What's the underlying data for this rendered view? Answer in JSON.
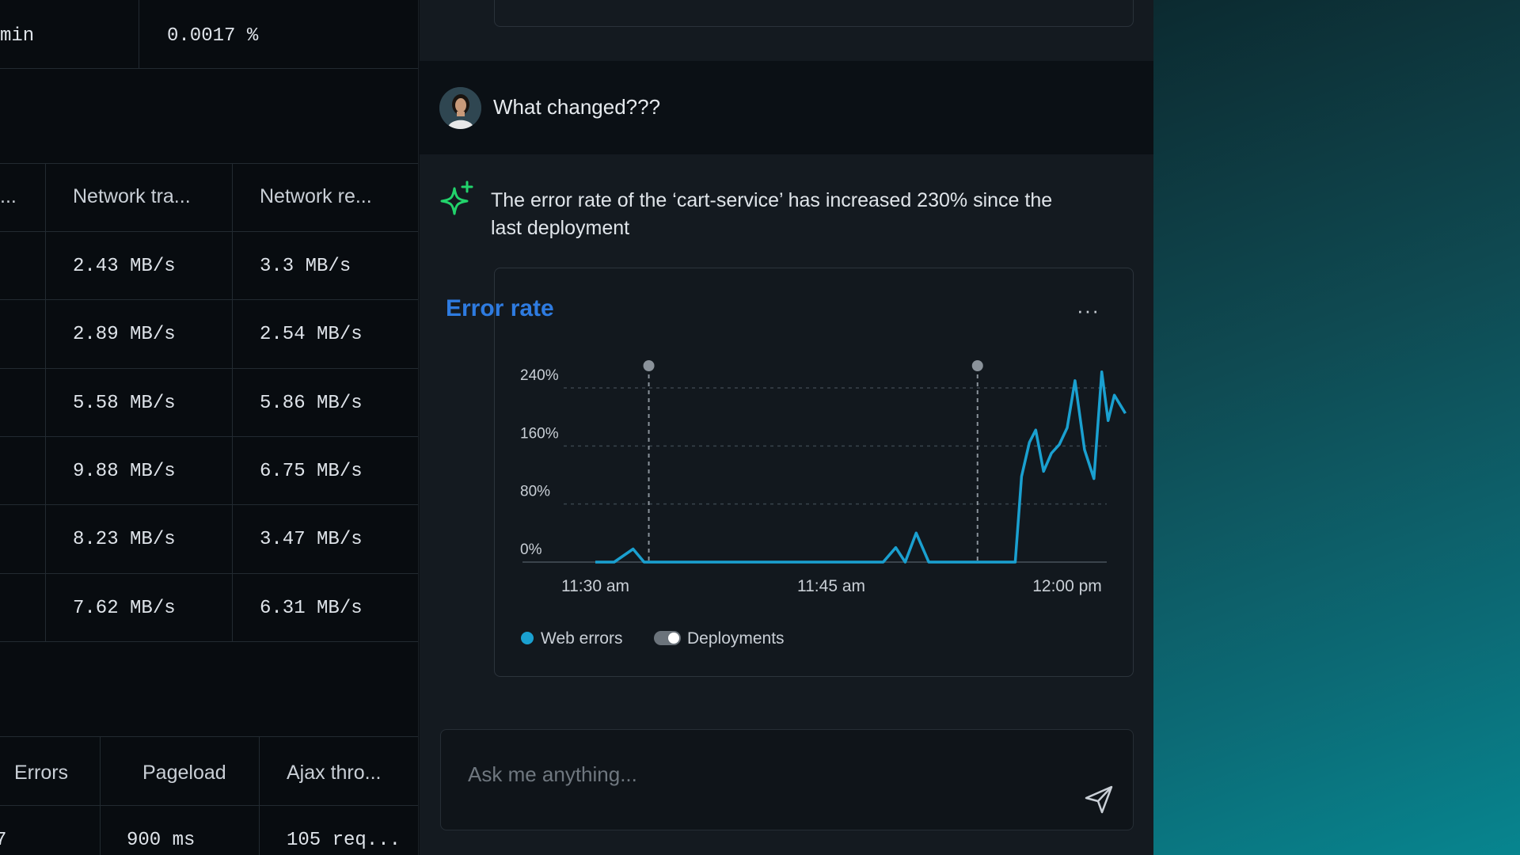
{
  "table_top": {
    "partial_label": "min",
    "value": "0.0017 %"
  },
  "network_table": {
    "headers": [
      "...",
      "Network tra...",
      "Network re..."
    ],
    "rows": [
      [
        "2.43 MB/s",
        "3.3 MB/s"
      ],
      [
        "2.89 MB/s",
        "2.54 MB/s"
      ],
      [
        "5.58 MB/s",
        "5.86 MB/s"
      ],
      [
        "9.88 MB/s",
        "6.75 MB/s"
      ],
      [
        "8.23 MB/s",
        "3.47 MB/s"
      ],
      [
        "7.62 MB/s",
        "6.31 MB/s"
      ]
    ]
  },
  "bottom_table": {
    "headers": [
      "Errors",
      "Pageload",
      "Ajax thro..."
    ],
    "row": [
      "7",
      "900 ms",
      "105 req..."
    ]
  },
  "chat": {
    "user_message": "What changed???",
    "ai_message": "The error rate of the ‘cart-service’ has increased 230% since the last deployment",
    "card": {
      "title": "Error rate",
      "menu": "···",
      "legend": {
        "series": "Web errors",
        "toggle": "Deployments"
      }
    },
    "input_placeholder": "Ask me anything..."
  },
  "colors": {
    "accent": "#2e7be0",
    "series": "#1aa0d0",
    "spark": "#22d36b"
  },
  "chart_data": {
    "type": "line",
    "title": "Error rate",
    "y_ticks": [
      "240%",
      "160%",
      "80%",
      "0%"
    ],
    "x_ticks": [
      "11:30 am",
      "11:45 am",
      "12:00 pm"
    ],
    "ylim": [
      0,
      240
    ],
    "y_tick_values": [
      240,
      160,
      80,
      0
    ],
    "x_tick_minutes": [
      30,
      45,
      60
    ],
    "xlim_minutes": [
      30,
      60
    ],
    "series": [
      {
        "name": "Web errors",
        "x_minutes": [
          30,
          31.2,
          32.4,
          33.1,
          47.5,
          48.3,
          49.1,
          49.7,
          50.4,
          51.2,
          56,
          56.3,
          56.7,
          57.1,
          57.6,
          58.0,
          58.5,
          59.0,
          59.5,
          60,
          60.5,
          61.1,
          61.7,
          62.2,
          62.6,
          63.0,
          63.7
        ],
        "values": [
          0,
          0,
          18,
          0,
          0,
          0,
          20,
          0,
          40,
          0,
          0,
          0,
          0,
          118,
          165,
          182,
          125,
          150,
          162,
          185,
          250,
          155,
          115,
          262,
          195,
          230,
          205
        ]
      }
    ],
    "deployments_minutes": [
      33.4,
      54.3
    ],
    "legend": [
      "Web errors",
      "Deployments"
    ],
    "grid": true
  }
}
